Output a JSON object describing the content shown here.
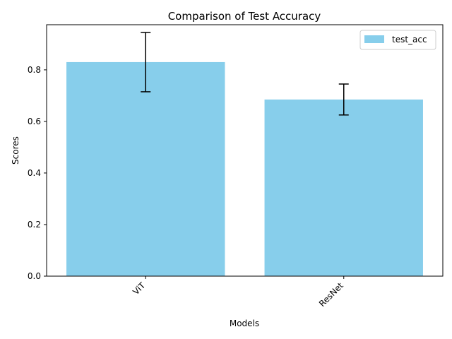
{
  "chart_data": {
    "type": "bar",
    "title": "Comparison of Test Accuracy",
    "xlabel": "Models",
    "ylabel": "Scores",
    "categories": [
      "ViT",
      "ResNet"
    ],
    "series": [
      {
        "name": "test_acc",
        "values": [
          0.83,
          0.685
        ],
        "errors": [
          0.115,
          0.06
        ],
        "color": "#87ceeb"
      }
    ],
    "ylim": [
      0,
      0.975
    ],
    "yticks": [
      0.0,
      0.2,
      0.4,
      0.6,
      0.8
    ],
    "ytick_labels": [
      "0.0",
      "0.2",
      "0.4",
      "0.6",
      "0.8"
    ],
    "xtick_rotation": 45,
    "grid": false,
    "legend_position": "upper right",
    "error_bar_color": "#000000",
    "axis_color": "#000000"
  }
}
